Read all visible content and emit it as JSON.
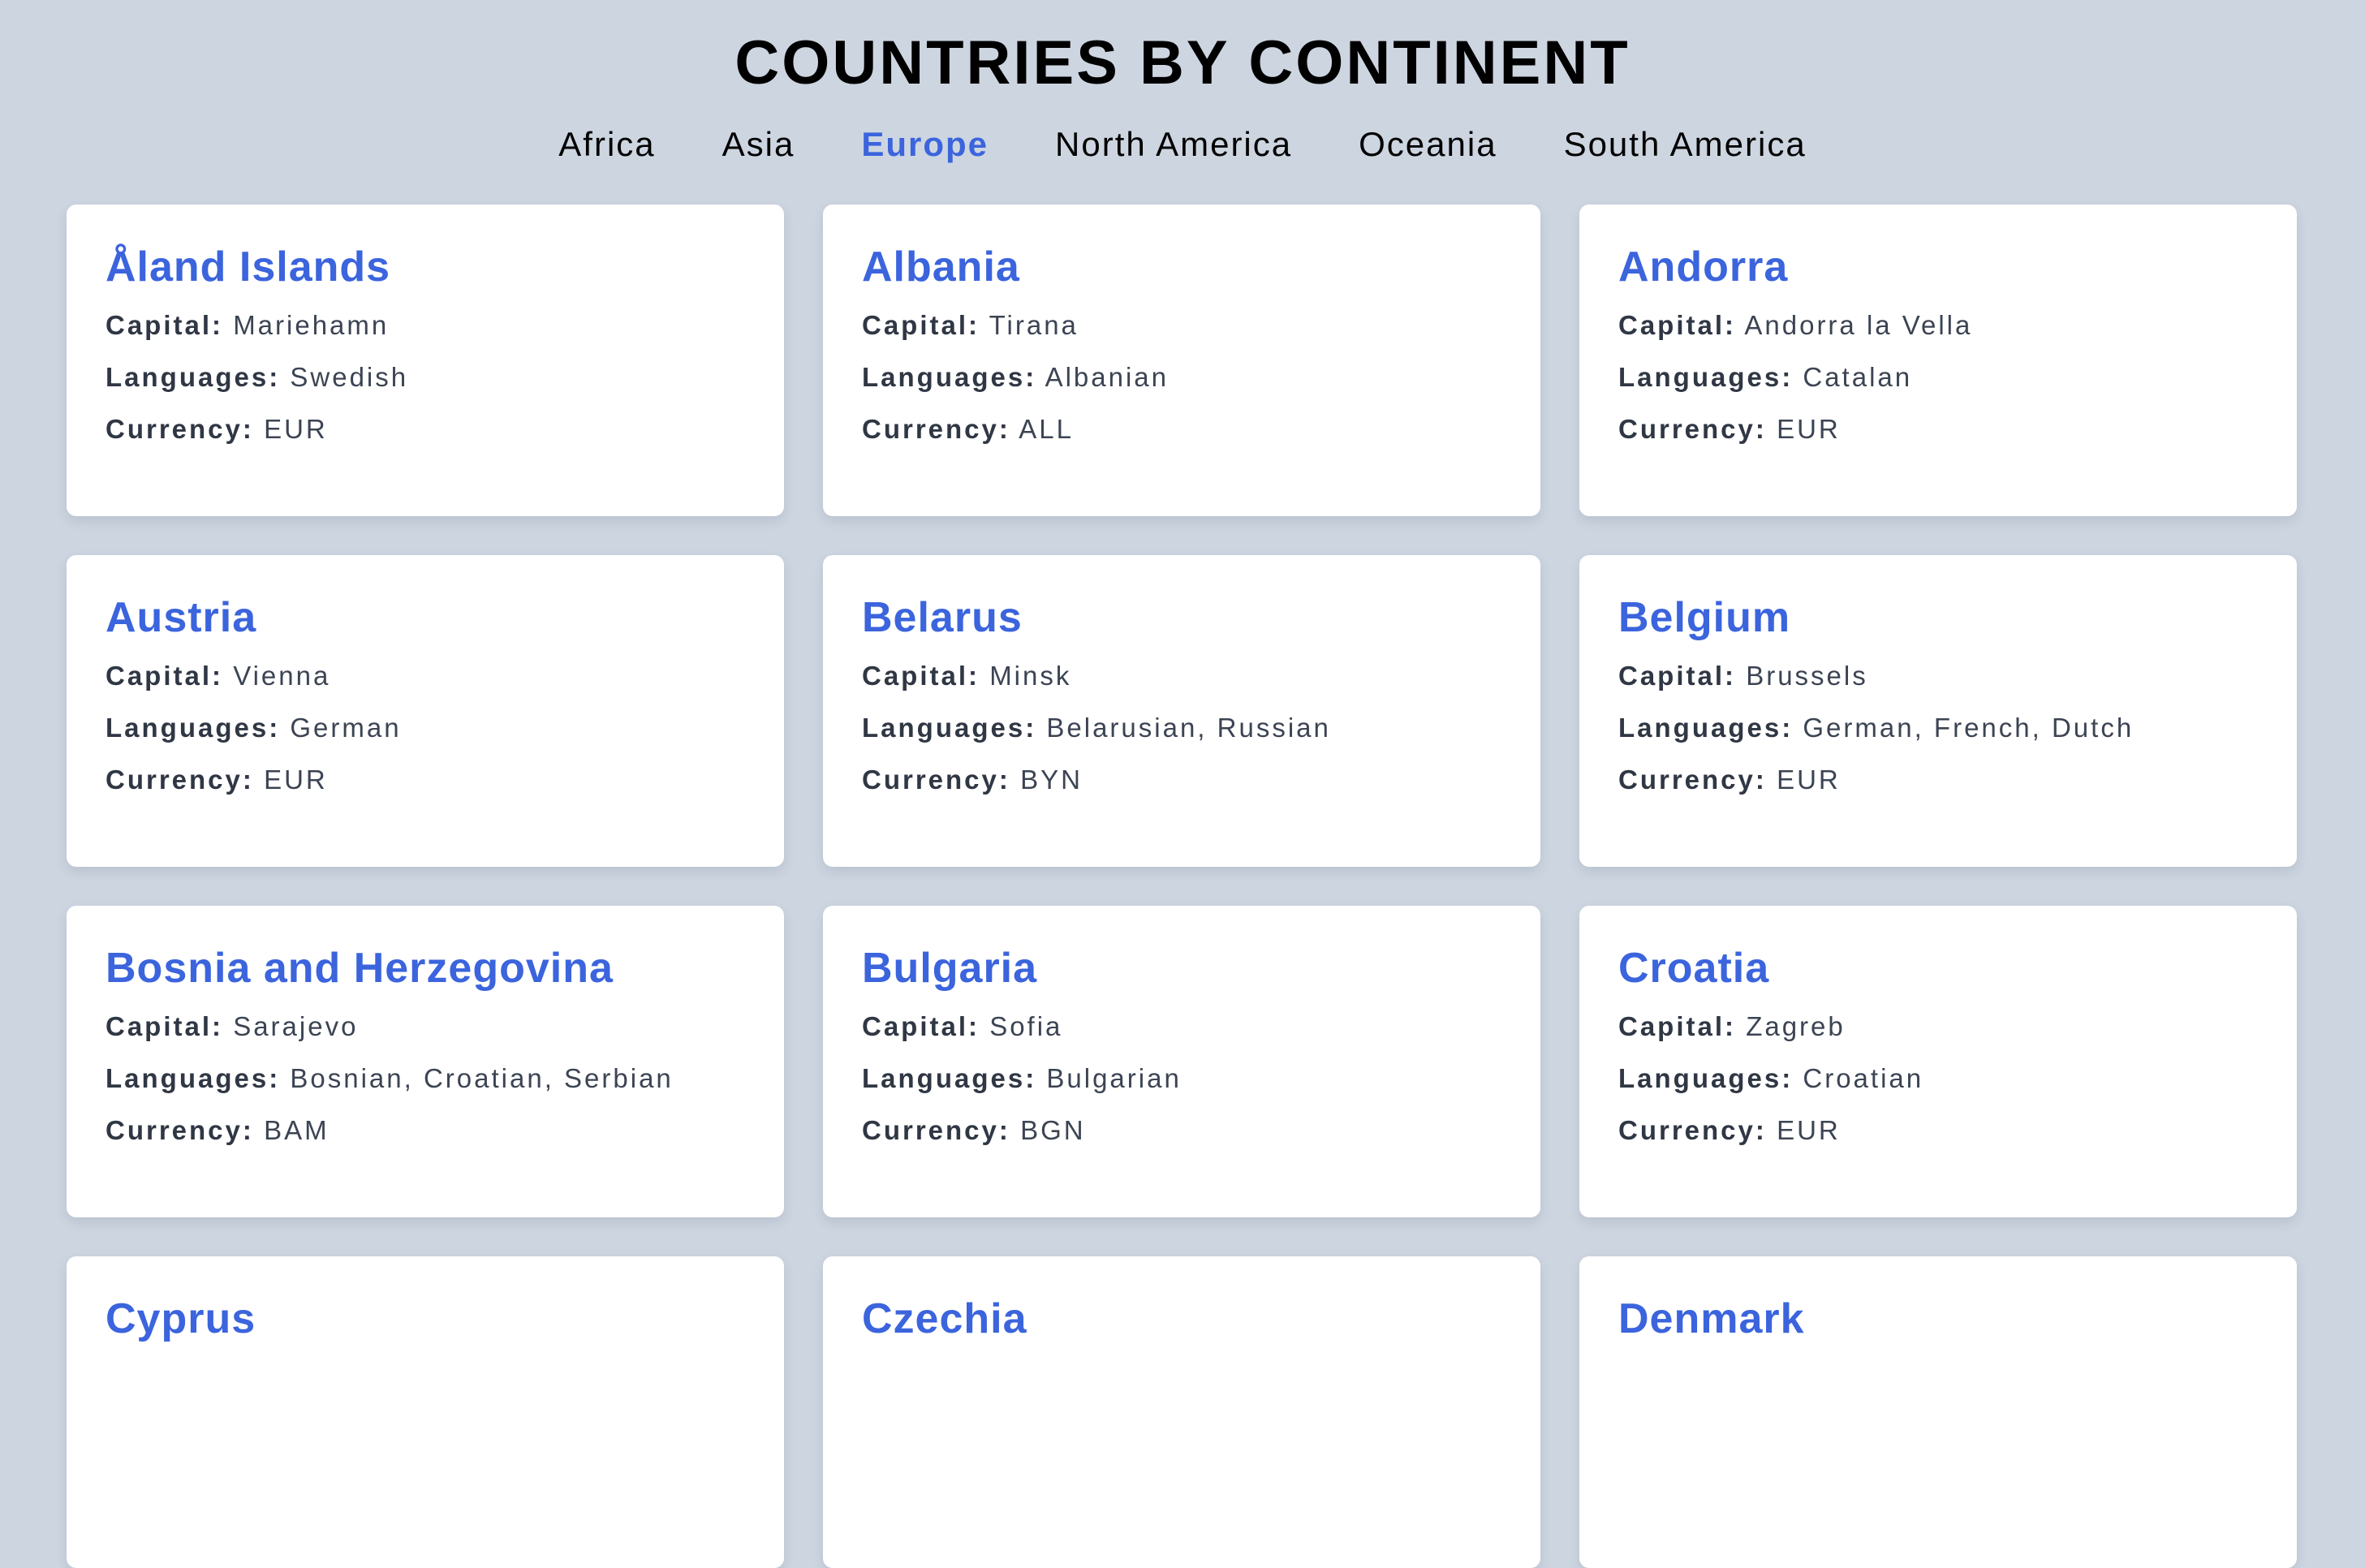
{
  "page": {
    "title": "COUNTRIES BY CONTINENT"
  },
  "nav": {
    "tabs": [
      {
        "label": "Africa",
        "active": false
      },
      {
        "label": "Asia",
        "active": false
      },
      {
        "label": "Europe",
        "active": true
      },
      {
        "label": "North America",
        "active": false
      },
      {
        "label": "Oceania",
        "active": false
      },
      {
        "label": "South America",
        "active": false
      }
    ],
    "active_color": "#3b64dd"
  },
  "labels": {
    "capital": "Capital:",
    "languages": "Languages:",
    "currency": "Currency:"
  },
  "countries": [
    {
      "name": "Åland Islands",
      "capital": "Mariehamn",
      "languages": "Swedish",
      "currency": "EUR"
    },
    {
      "name": "Albania",
      "capital": "Tirana",
      "languages": "Albanian",
      "currency": "ALL"
    },
    {
      "name": "Andorra",
      "capital": "Andorra la Vella",
      "languages": "Catalan",
      "currency": "EUR"
    },
    {
      "name": "Austria",
      "capital": "Vienna",
      "languages": "German",
      "currency": "EUR"
    },
    {
      "name": "Belarus",
      "capital": "Minsk",
      "languages": "Belarusian, Russian",
      "currency": "BYN"
    },
    {
      "name": "Belgium",
      "capital": "Brussels",
      "languages": "German, French, Dutch",
      "currency": "EUR"
    },
    {
      "name": "Bosnia and Herzegovina",
      "capital": "Sarajevo",
      "languages": "Bosnian, Croatian, Serbian",
      "currency": "BAM"
    },
    {
      "name": "Bulgaria",
      "capital": "Sofia",
      "languages": "Bulgarian",
      "currency": "BGN"
    },
    {
      "name": "Croatia",
      "capital": "Zagreb",
      "languages": "Croatian",
      "currency": "EUR"
    },
    {
      "name": "Cyprus"
    },
    {
      "name": "Czechia"
    },
    {
      "name": "Denmark"
    }
  ],
  "colors": {
    "background": "#cdd5e0",
    "card": "#ffffff",
    "accent": "#3b64dd"
  }
}
